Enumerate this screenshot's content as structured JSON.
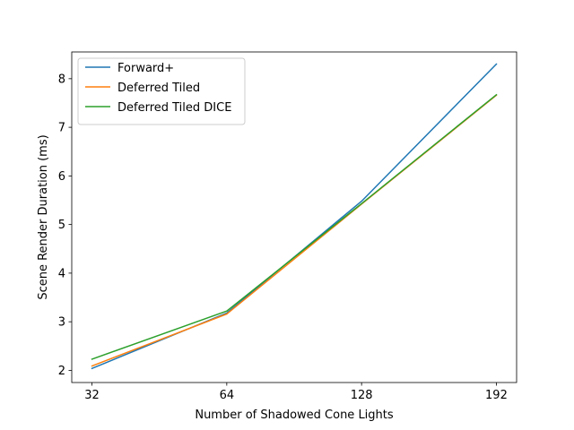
{
  "chart_data": {
    "type": "line",
    "categories": [
      "32",
      "64",
      "128",
      "192"
    ],
    "xlabel": "Number of Shadowed Cone Lights",
    "ylabel": "Scene Render Duration (ms)",
    "ylim": [
      1.75,
      8.55
    ],
    "yticks": [
      2,
      3,
      4,
      5,
      6,
      7,
      8
    ],
    "grid": false,
    "legend_position": "upper-left",
    "series": [
      {
        "name": "Forward+",
        "color": "#1f77b4",
        "values": [
          2.04,
          3.18,
          5.48,
          8.3
        ]
      },
      {
        "name": "Deferred Tiled",
        "color": "#ff7f0e",
        "values": [
          2.09,
          3.16,
          5.42,
          7.66
        ]
      },
      {
        "name": "Deferred Tiled DICE",
        "color": "#2ca02c",
        "values": [
          2.23,
          3.22,
          5.43,
          7.67
        ]
      }
    ]
  }
}
